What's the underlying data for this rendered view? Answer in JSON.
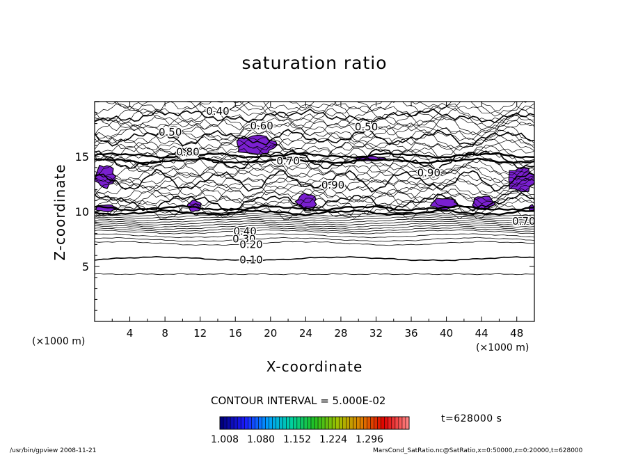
{
  "chart_data": {
    "type": "contour",
    "title": "saturation ratio",
    "xlabel": "X-coordinate",
    "ylabel": "Z-coordinate",
    "x_unit": "(×1000 m)",
    "xlim": [
      0,
      50
    ],
    "ylim": [
      0,
      20
    ],
    "x_ticks": [
      4,
      8,
      12,
      16,
      20,
      24,
      28,
      32,
      36,
      40,
      44,
      48
    ],
    "y_ticks": [
      5,
      10,
      15
    ],
    "contour_interval_text": "CONTOUR INTERVAL = 5.000E-02",
    "contour_labels": [
      {
        "text": "0.40",
        "x": 14,
        "z": 19.1
      },
      {
        "text": "0.50",
        "x": 8.6,
        "z": 17.2
      },
      {
        "text": "0.60",
        "x": 19,
        "z": 17.8
      },
      {
        "text": "0.50",
        "x": 30.9,
        "z": 17.7
      },
      {
        "text": "0.70",
        "x": 22,
        "z": 14.6
      },
      {
        "text": "0.80",
        "x": 10.6,
        "z": 15.4
      },
      {
        "text": "0.90",
        "x": 27.1,
        "z": 12.4
      },
      {
        "text": "0.90",
        "x": 38,
        "z": 13.5
      },
      {
        "text": "0.70",
        "x": 48.8,
        "z": 9.1
      },
      {
        "text": "0.40",
        "x": 17.1,
        "z": 8.2
      },
      {
        "text": "0.30",
        "x": 17,
        "z": 7.5
      },
      {
        "text": "0.20",
        "x": 17.8,
        "z": 7.0
      },
      {
        "text": "0.10",
        "x": 17.8,
        "z": 5.6
      }
    ],
    "supersaturated_regions": [
      {
        "x": [
          0.1,
          2.3
        ],
        "z": [
          12.2,
          14.2
        ]
      },
      {
        "x": [
          0.1,
          2.5
        ],
        "z": [
          10.0,
          10.6
        ]
      },
      {
        "x": [
          16.1,
          20.6
        ],
        "z": [
          15.2,
          16.9
        ]
      },
      {
        "x": [
          29.6,
          33.0
        ],
        "z": [
          14.6,
          15.0
        ]
      },
      {
        "x": [
          10.6,
          12.1
        ],
        "z": [
          10.0,
          11.0
        ]
      },
      {
        "x": [
          23.0,
          25.2
        ],
        "z": [
          10.2,
          11.6
        ]
      },
      {
        "x": [
          38.3,
          41.2
        ],
        "z": [
          10.2,
          11.2
        ]
      },
      {
        "x": [
          43.0,
          45.4
        ],
        "z": [
          10.2,
          11.4
        ]
      },
      {
        "x": [
          47.0,
          50.0
        ],
        "z": [
          11.8,
          14.0
        ]
      },
      {
        "x": [
          49.4,
          50.0
        ],
        "z": [
          10.0,
          10.6
        ]
      }
    ],
    "fill_color": "#7a1fd0",
    "colorbar": {
      "ticks": [
        "1.008",
        "1.080",
        "1.152",
        "1.224",
        "1.296"
      ],
      "colors": [
        "#000080",
        "#1a1aff",
        "#00a0ff",
        "#00d0a0",
        "#20c020",
        "#a0c000",
        "#e08000",
        "#e00000",
        "#ff8080"
      ]
    },
    "time_label": "t=628000 s",
    "grid": false
  },
  "footer": {
    "left": "/usr/bin/gpview   2008-11-21",
    "right": "MarsCond_SatRatio.nc@SatRatio,x=0:50000,z=0:20000,t=628000"
  }
}
